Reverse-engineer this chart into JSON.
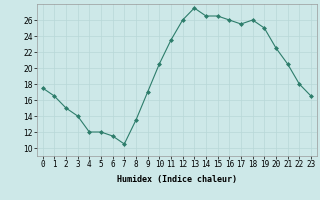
{
  "x": [
    0,
    1,
    2,
    3,
    4,
    5,
    6,
    7,
    8,
    9,
    10,
    11,
    12,
    13,
    14,
    15,
    16,
    17,
    18,
    19,
    20,
    21,
    22,
    23
  ],
  "y": [
    17.5,
    16.5,
    15.0,
    14.0,
    12.0,
    12.0,
    11.5,
    10.5,
    13.5,
    17.0,
    20.5,
    23.5,
    26.0,
    27.5,
    26.5,
    26.5,
    26.0,
    25.5,
    26.0,
    25.0,
    22.5,
    20.5,
    18.0,
    16.5
  ],
  "line_color": "#2d7d6b",
  "marker": "D",
  "marker_size": 2,
  "bg_color": "#cde8e8",
  "grid_color": "#b8d8d8",
  "xlabel": "Humidex (Indice chaleur)",
  "xlim": [
    -0.5,
    23.5
  ],
  "ylim": [
    9,
    28
  ],
  "yticks": [
    10,
    12,
    14,
    16,
    18,
    20,
    22,
    24,
    26
  ],
  "xtick_labels": [
    "0",
    "1",
    "2",
    "3",
    "4",
    "5",
    "6",
    "7",
    "8",
    "9",
    "10",
    "11",
    "12",
    "13",
    "14",
    "15",
    "16",
    "17",
    "18",
    "19",
    "20",
    "21",
    "22",
    "23"
  ],
  "axis_fontsize": 6,
  "tick_fontsize": 5.5
}
